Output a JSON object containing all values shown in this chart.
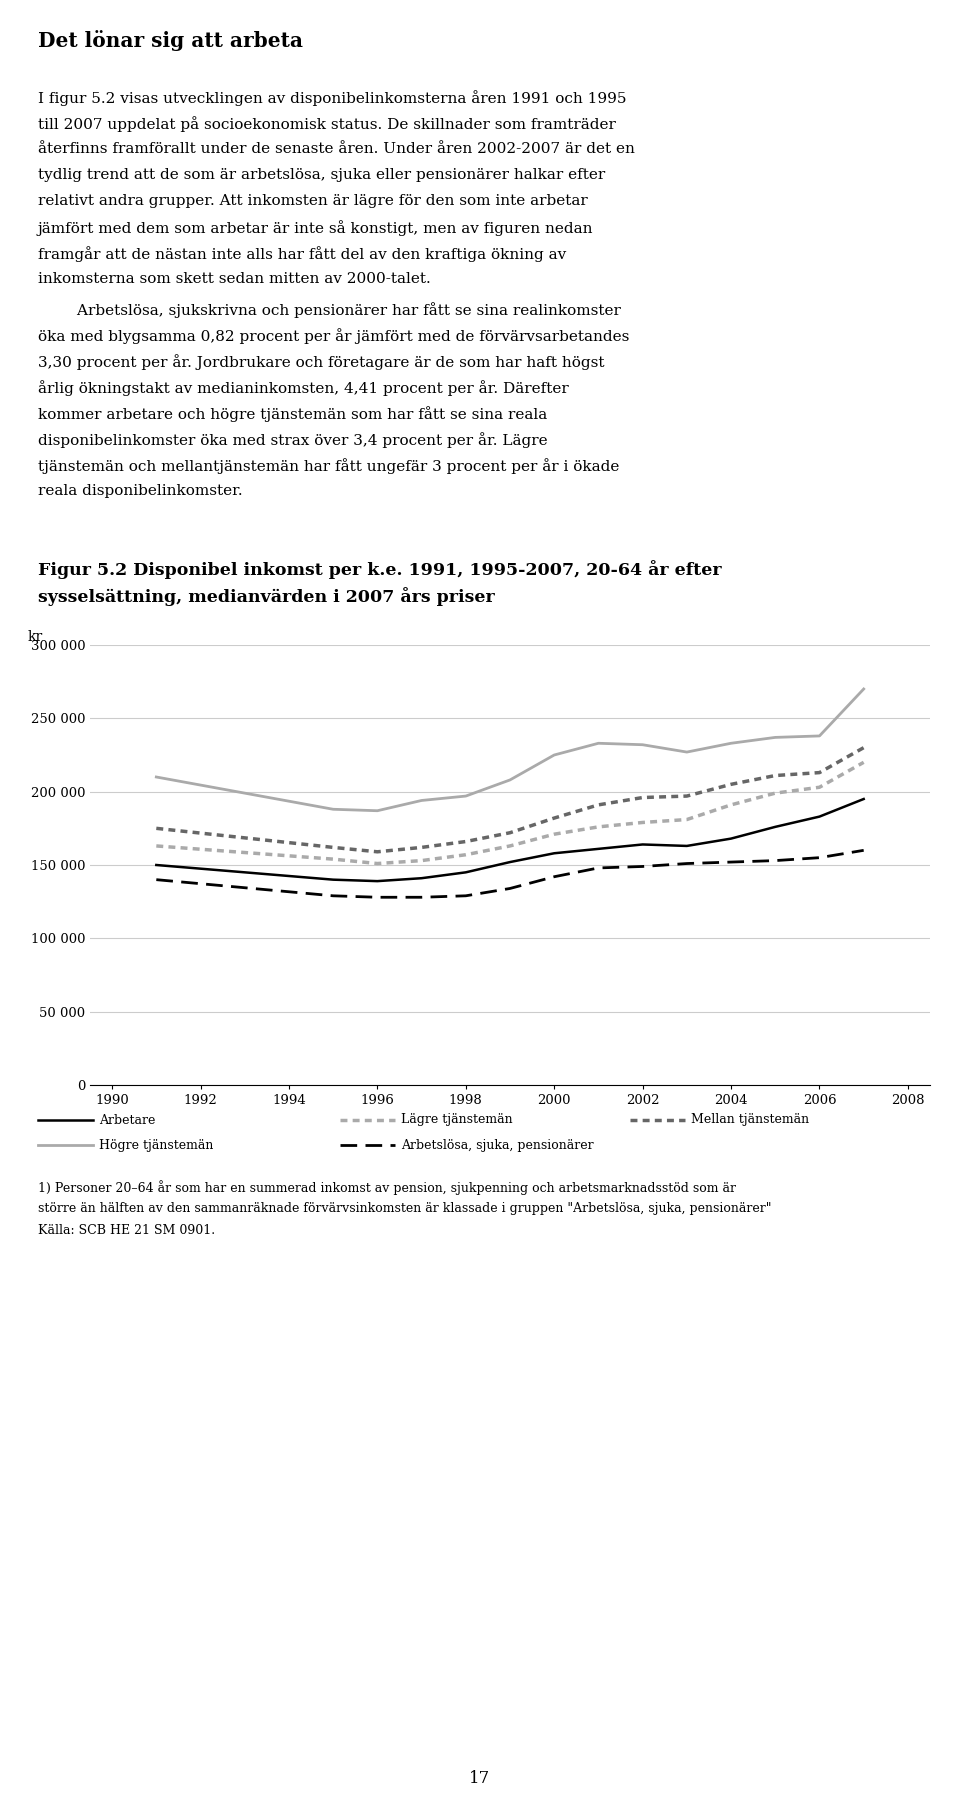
{
  "title": "Det lönar sig att arbeta",
  "para1": "I figur 5.2 visas utvecklingen av disponibelinkomsterna åren 1991 och 1995 till 2007 uppdelat på socioekonomisk status. De skillnader som framträder återfinns framförallt under de senaste åren. Under åren 2002-2007 är det en tydlig trend att de som är arbetslösa, sjuka eller pensionärer halkar efter relativt andra grupper. Att inkomsten är lägre för den som inte arbetar jämfört med dem som arbetar är inte så konstigt, men av figuren nedan framgår att de nästan inte alls har fått del av den kraftiga ökning av inkomsterna som skett sedan mitten av 2000-talet.",
  "para2": "    Arbetslösa, sjukskrivna och pensionärer har fått se sina realinkomster öka med blygsamma 0,82 procent per år jämfört med de förvärvsarbetandes 3,30 procent per år. Jordbrukare och företagare är de som har haft högst årlig ökningstakt av medianinkomsten, 4,41 procent per år. Därefter kommer arbetare och högre tjänstemän som har fått se sina reala disponibelinkomster öka med strax över 3,4 procent per år. Lägre tjänstemän och mellantjänstemän har fått ungefär 3 procent per år i ökade reala disponibelinkomster.",
  "fig_title1": "Figur 5.2 Disponibel inkomst per k.e. 1991, 1995-2007, 20-64 år efter",
  "fig_title2": "sysselsättning, medianvärden i 2007 års priser",
  "ylabel": "kr",
  "xlim": [
    1989.5,
    2008.5
  ],
  "ylim": [
    0,
    300000
  ],
  "yticks": [
    0,
    50000,
    100000,
    150000,
    200000,
    250000,
    300000
  ],
  "ytick_labels": [
    "0",
    "50 000",
    "100 000",
    "150 000",
    "200 000",
    "250 000",
    "300 000"
  ],
  "xticks": [
    1990,
    1992,
    1994,
    1996,
    1998,
    2000,
    2002,
    2004,
    2006,
    2008
  ],
  "xtick_labels": [
    "1990",
    "1992",
    "1994",
    "1996",
    "1998",
    "2000",
    "2002",
    "2004",
    "2006",
    "2008"
  ],
  "series_Arbetare_x": [
    1991,
    1995,
    1996,
    1997,
    1998,
    1999,
    2000,
    2001,
    2002,
    2003,
    2004,
    2005,
    2006,
    2007
  ],
  "series_Arbetare_y": [
    150000,
    140000,
    139000,
    141000,
    145000,
    152000,
    158000,
    161000,
    164000,
    163000,
    168000,
    176000,
    183000,
    195000
  ],
  "series_Hogre_x": [
    1991,
    1995,
    1996,
    1997,
    1998,
    1999,
    2000,
    2001,
    2002,
    2003,
    2004,
    2005,
    2006,
    2007
  ],
  "series_Hogre_y": [
    210000,
    188000,
    187000,
    194000,
    197000,
    208000,
    225000,
    233000,
    232000,
    227000,
    233000,
    237000,
    238000,
    270000
  ],
  "series_Lagre_x": [
    1991,
    1995,
    1996,
    1997,
    1998,
    1999,
    2000,
    2001,
    2002,
    2003,
    2004,
    2005,
    2006,
    2007
  ],
  "series_Lagre_y": [
    163000,
    154000,
    151000,
    153000,
    157000,
    163000,
    171000,
    176000,
    179000,
    181000,
    191000,
    199000,
    203000,
    220000
  ],
  "series_Mellan_x": [
    1991,
    1995,
    1996,
    1997,
    1998,
    1999,
    2000,
    2001,
    2002,
    2003,
    2004,
    2005,
    2006,
    2007
  ],
  "series_Mellan_y": [
    175000,
    162000,
    159000,
    162000,
    166000,
    172000,
    182000,
    191000,
    196000,
    197000,
    205000,
    211000,
    213000,
    230000
  ],
  "series_Arb_x": [
    1991,
    1995,
    1996,
    1997,
    1998,
    1999,
    2000,
    2001,
    2002,
    2003,
    2004,
    2005,
    2006,
    2007
  ],
  "series_Arb_y": [
    140000,
    129000,
    128000,
    128000,
    129000,
    134000,
    142000,
    148000,
    149000,
    151000,
    152000,
    153000,
    155000,
    160000
  ],
  "footnote": "1) Personer 20–64 år som har en summerad inkomst av pension, sjukpenning och arbetsmarknadsstöd som är\nstörre än hälften av den sammanräknade förvärvsinkomsten är klassade i gruppen \"Arbetslösa, sjuka, pensionärer\"\nKälla: SCB HE 21 SM 0901.",
  "page_number": "17",
  "bg_color": "#ffffff",
  "text_color": "#000000",
  "grid_color": "#cccccc",
  "color_black": "#000000",
  "color_gray_light": "#aaaaaa",
  "color_gray_mid": "#666666"
}
